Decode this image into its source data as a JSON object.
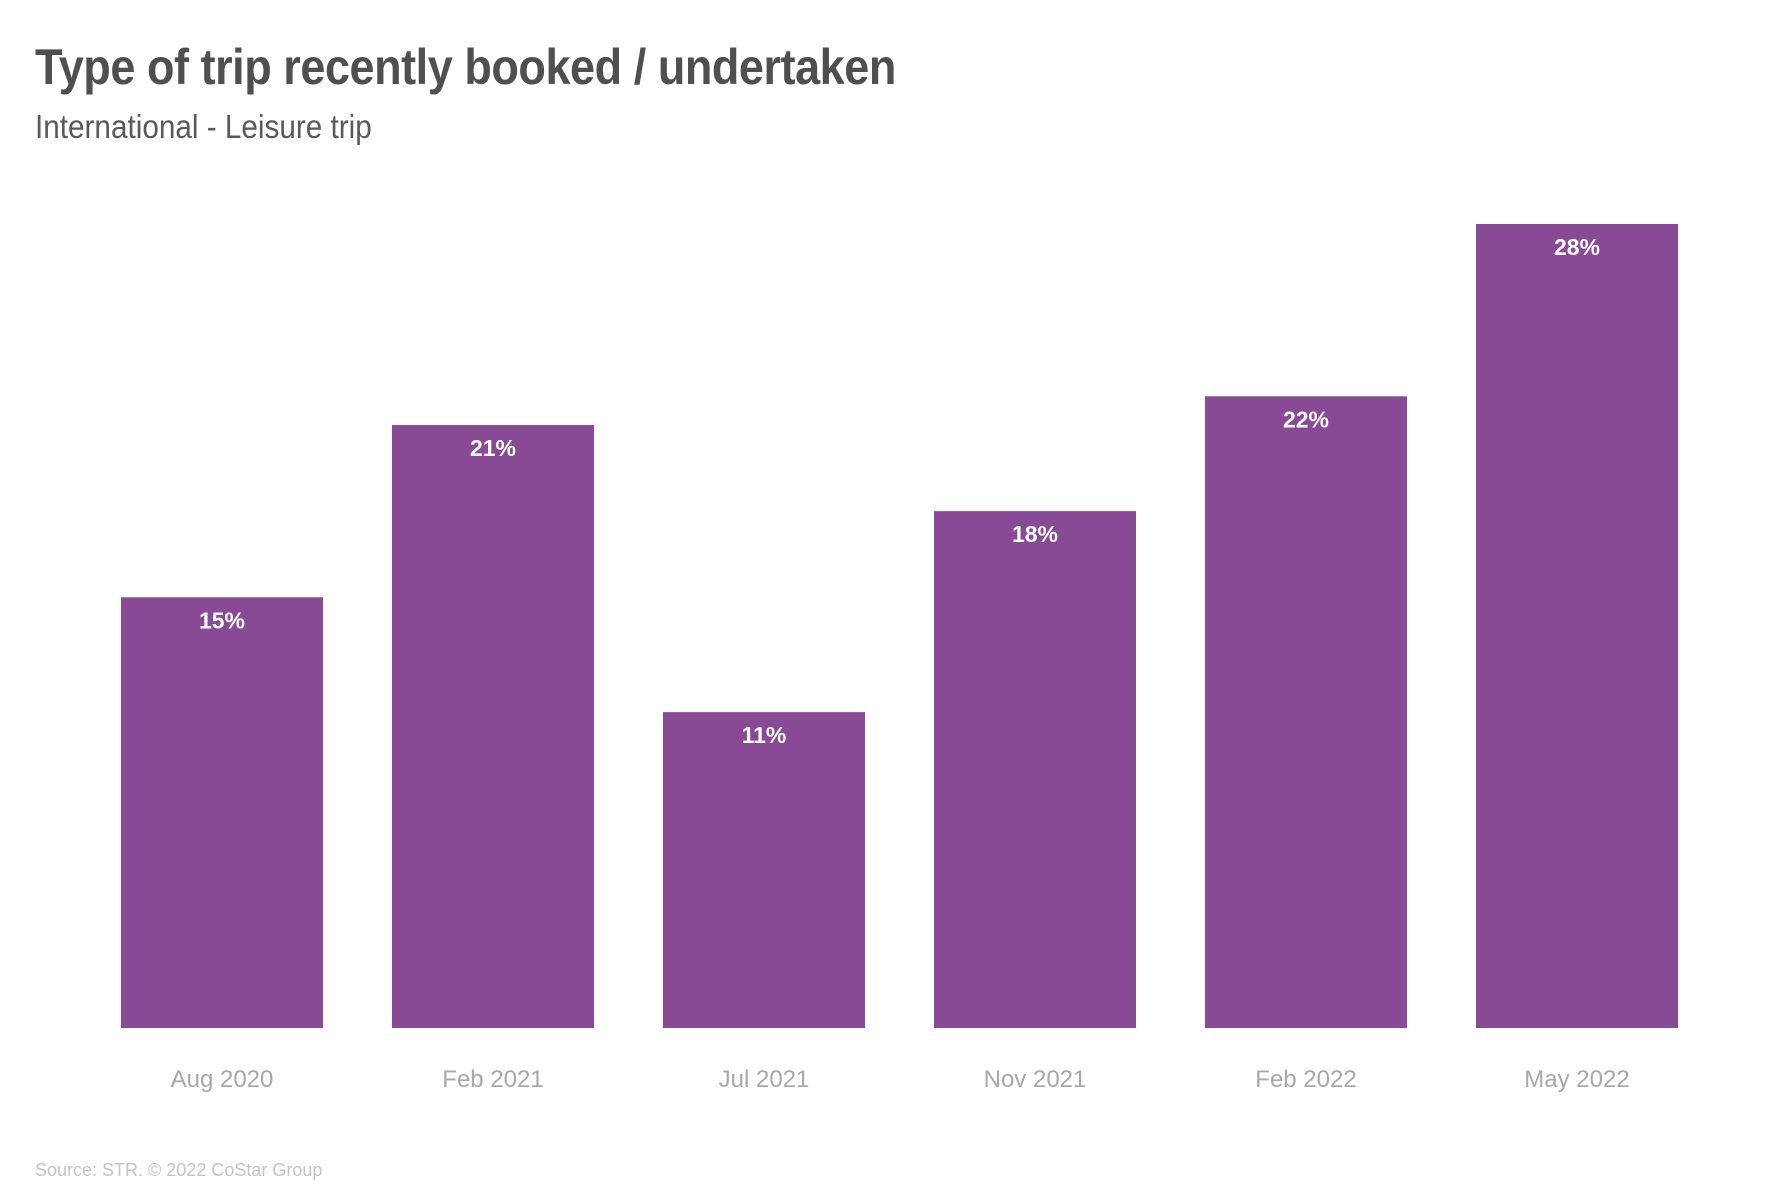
{
  "colors": {
    "bar": "#884a94",
    "bar_label": "#ffffff",
    "tick_label": "#a8a8a8"
  },
  "chart_data": {
    "type": "bar",
    "title": "Type of trip recently booked / undertaken",
    "subtitle": "International - Leisure trip",
    "categories": [
      "Aug 2020",
      "Feb 2021",
      "Jul 2021",
      "Nov 2021",
      "Feb 2022",
      "May 2022"
    ],
    "values": [
      15,
      21,
      11,
      18,
      22,
      28
    ],
    "data_labels": [
      "15%",
      "21%",
      "11%",
      "18%",
      "22%",
      "28%"
    ],
    "xlabel": "",
    "ylabel": "",
    "ylim": [
      0,
      28
    ],
    "grid": false,
    "legend": "none",
    "source": "Source: STR. © 2022 CoStar Group"
  }
}
